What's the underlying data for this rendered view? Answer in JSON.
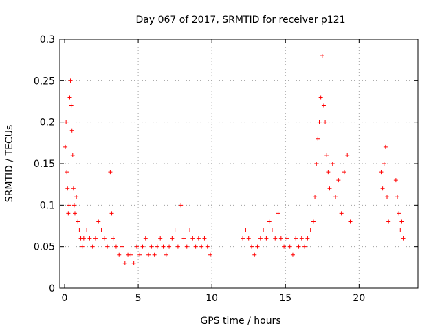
{
  "chart_data": {
    "type": "scatter",
    "title": "Day 067 of 2017, SRMTID for receiver p121",
    "xlabel": "GPS time / hours",
    "ylabel": "SRMTID / TECUs",
    "xlim": [
      0,
      24
    ],
    "ylim": [
      0,
      0.3
    ],
    "xticks": [
      0,
      5,
      10,
      15,
      20
    ],
    "yticks": [
      0,
      0.05,
      0.1,
      0.15,
      0.2,
      0.25,
      0.3
    ],
    "xtick_labels": [
      "0",
      "5",
      "10",
      "15",
      "20"
    ],
    "ytick_labels": [
      "0",
      "0.05",
      "0.1",
      "0.15",
      "0.2",
      "0.25",
      "0.3"
    ],
    "grid": true,
    "marker": "+",
    "color": "#ff0000",
    "series": [
      {
        "name": "SRMTID",
        "x": [
          0.05,
          0.1,
          0.15,
          0.2,
          0.25,
          0.3,
          0.35,
          0.4,
          0.45,
          0.5,
          0.55,
          0.6,
          0.65,
          0.7,
          0.8,
          0.9,
          1.0,
          1.1,
          1.2,
          1.3,
          1.5,
          1.7,
          1.9,
          2.1,
          2.3,
          2.5,
          2.7,
          2.9,
          3.1,
          3.2,
          3.3,
          3.5,
          3.7,
          3.9,
          4.1,
          4.3,
          4.5,
          4.7,
          4.9,
          5.1,
          5.3,
          5.5,
          5.7,
          5.9,
          6.1,
          6.3,
          6.5,
          6.7,
          6.9,
          7.1,
          7.3,
          7.5,
          7.7,
          7.9,
          8.1,
          8.3,
          8.5,
          8.7,
          8.9,
          9.1,
          9.3,
          9.5,
          9.7,
          9.9,
          12.1,
          12.3,
          12.5,
          12.7,
          12.9,
          13.1,
          13.3,
          13.5,
          13.7,
          13.9,
          14.1,
          14.3,
          14.5,
          14.7,
          14.9,
          15.1,
          15.3,
          15.5,
          15.7,
          15.9,
          16.1,
          16.3,
          16.5,
          16.7,
          16.9,
          17.0,
          17.1,
          17.2,
          17.3,
          17.4,
          17.5,
          17.6,
          17.7,
          17.8,
          17.9,
          18.0,
          18.2,
          18.4,
          18.6,
          18.8,
          19.0,
          19.2,
          19.4,
          21.5,
          21.6,
          21.7,
          21.8,
          21.9,
          22.0,
          22.5,
          22.6,
          22.7,
          22.8,
          22.9,
          23.0
        ],
        "y": [
          0.17,
          0.2,
          0.14,
          0.12,
          0.09,
          0.1,
          0.23,
          0.25,
          0.22,
          0.19,
          0.16,
          0.12,
          0.1,
          0.09,
          0.11,
          0.08,
          0.07,
          0.06,
          0.05,
          0.06,
          0.07,
          0.06,
          0.05,
          0.06,
          0.08,
          0.07,
          0.06,
          0.05,
          0.14,
          0.09,
          0.06,
          0.05,
          0.04,
          0.05,
          0.03,
          0.04,
          0.04,
          0.03,
          0.05,
          0.04,
          0.05,
          0.06,
          0.04,
          0.05,
          0.04,
          0.05,
          0.06,
          0.05,
          0.04,
          0.05,
          0.06,
          0.07,
          0.05,
          0.1,
          0.06,
          0.05,
          0.07,
          0.06,
          0.05,
          0.06,
          0.05,
          0.06,
          0.05,
          0.04,
          0.06,
          0.07,
          0.06,
          0.05,
          0.04,
          0.05,
          0.06,
          0.07,
          0.06,
          0.08,
          0.07,
          0.06,
          0.09,
          0.06,
          0.05,
          0.06,
          0.05,
          0.04,
          0.06,
          0.05,
          0.06,
          0.05,
          0.06,
          0.07,
          0.08,
          0.11,
          0.15,
          0.18,
          0.2,
          0.23,
          0.28,
          0.22,
          0.2,
          0.16,
          0.14,
          0.12,
          0.15,
          0.11,
          0.13,
          0.09,
          0.14,
          0.16,
          0.08,
          0.14,
          0.12,
          0.15,
          0.17,
          0.11,
          0.08,
          0.13,
          0.11,
          0.09,
          0.07,
          0.08,
          0.06
        ]
      }
    ]
  }
}
